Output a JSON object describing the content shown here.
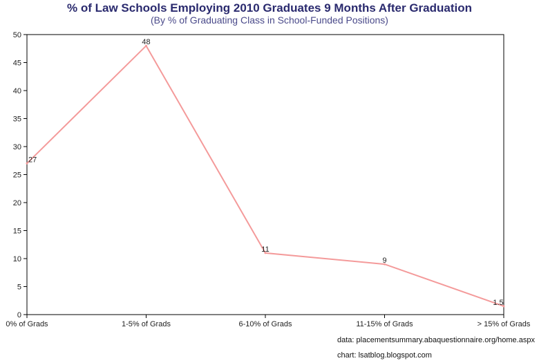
{
  "chart_data": {
    "type": "line",
    "title": "% of Law Schools Employing 2010 Graduates 9 Months After Graduation",
    "subtitle": "(By % of Graduating Class in School-Funded Positions)",
    "categories": [
      "0% of Grads",
      "1-5% of Grads",
      "6-10% of Grads",
      "11-15% of Grads",
      "> 15% of Grads"
    ],
    "series": [
      {
        "values": [
          27,
          48,
          11,
          9,
          1.5
        ],
        "color": "#f49a9a"
      }
    ],
    "data_labels": [
      "27",
      "48",
      "11",
      "9",
      "1.5"
    ],
    "ylim": [
      0,
      50
    ],
    "yticks": [
      0,
      5,
      10,
      15,
      20,
      25,
      30,
      35,
      40,
      45,
      50
    ],
    "grid": false,
    "notes": {
      "data_source": "data: placementsummary.abaquestionnaire.org/home.aspx",
      "chart_credit": "chart: lsatblog.blogspot.com"
    }
  }
}
